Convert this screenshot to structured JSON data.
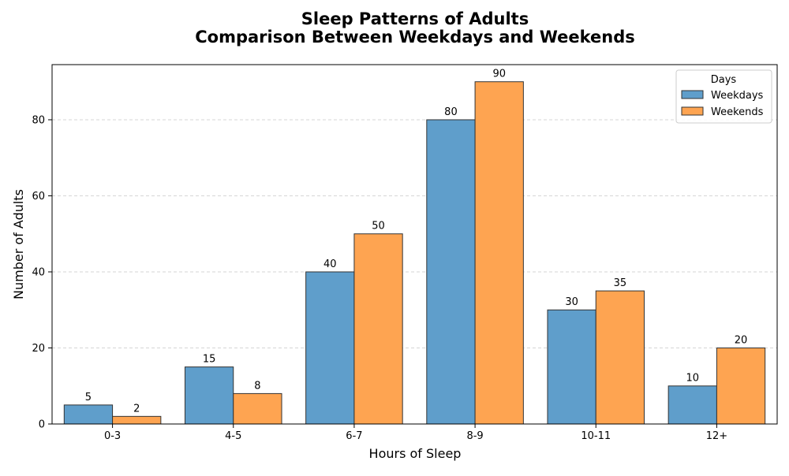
{
  "chart_data": {
    "type": "bar",
    "title": "Sleep Patterns of Adults",
    "subtitle": "Comparison Between Weekdays and Weekends",
    "xlabel": "Hours of Sleep",
    "ylabel": "Number of Adults",
    "categories": [
      "0-3",
      "4-5",
      "6-7",
      "8-9",
      "10-11",
      "12+"
    ],
    "series": [
      {
        "name": "Weekdays",
        "values": [
          5,
          15,
          40,
          80,
          30,
          10
        ],
        "color": "#5f9ecb"
      },
      {
        "name": "Weekends",
        "values": [
          2,
          8,
          50,
          90,
          35,
          20
        ],
        "color": "#fea451"
      }
    ],
    "ylim": [
      0,
      94.5
    ],
    "yticks": [
      0,
      20,
      40,
      60,
      80
    ],
    "grid": "horizontal-dashed",
    "legend": {
      "title": "Days",
      "placement": "top-right"
    }
  }
}
